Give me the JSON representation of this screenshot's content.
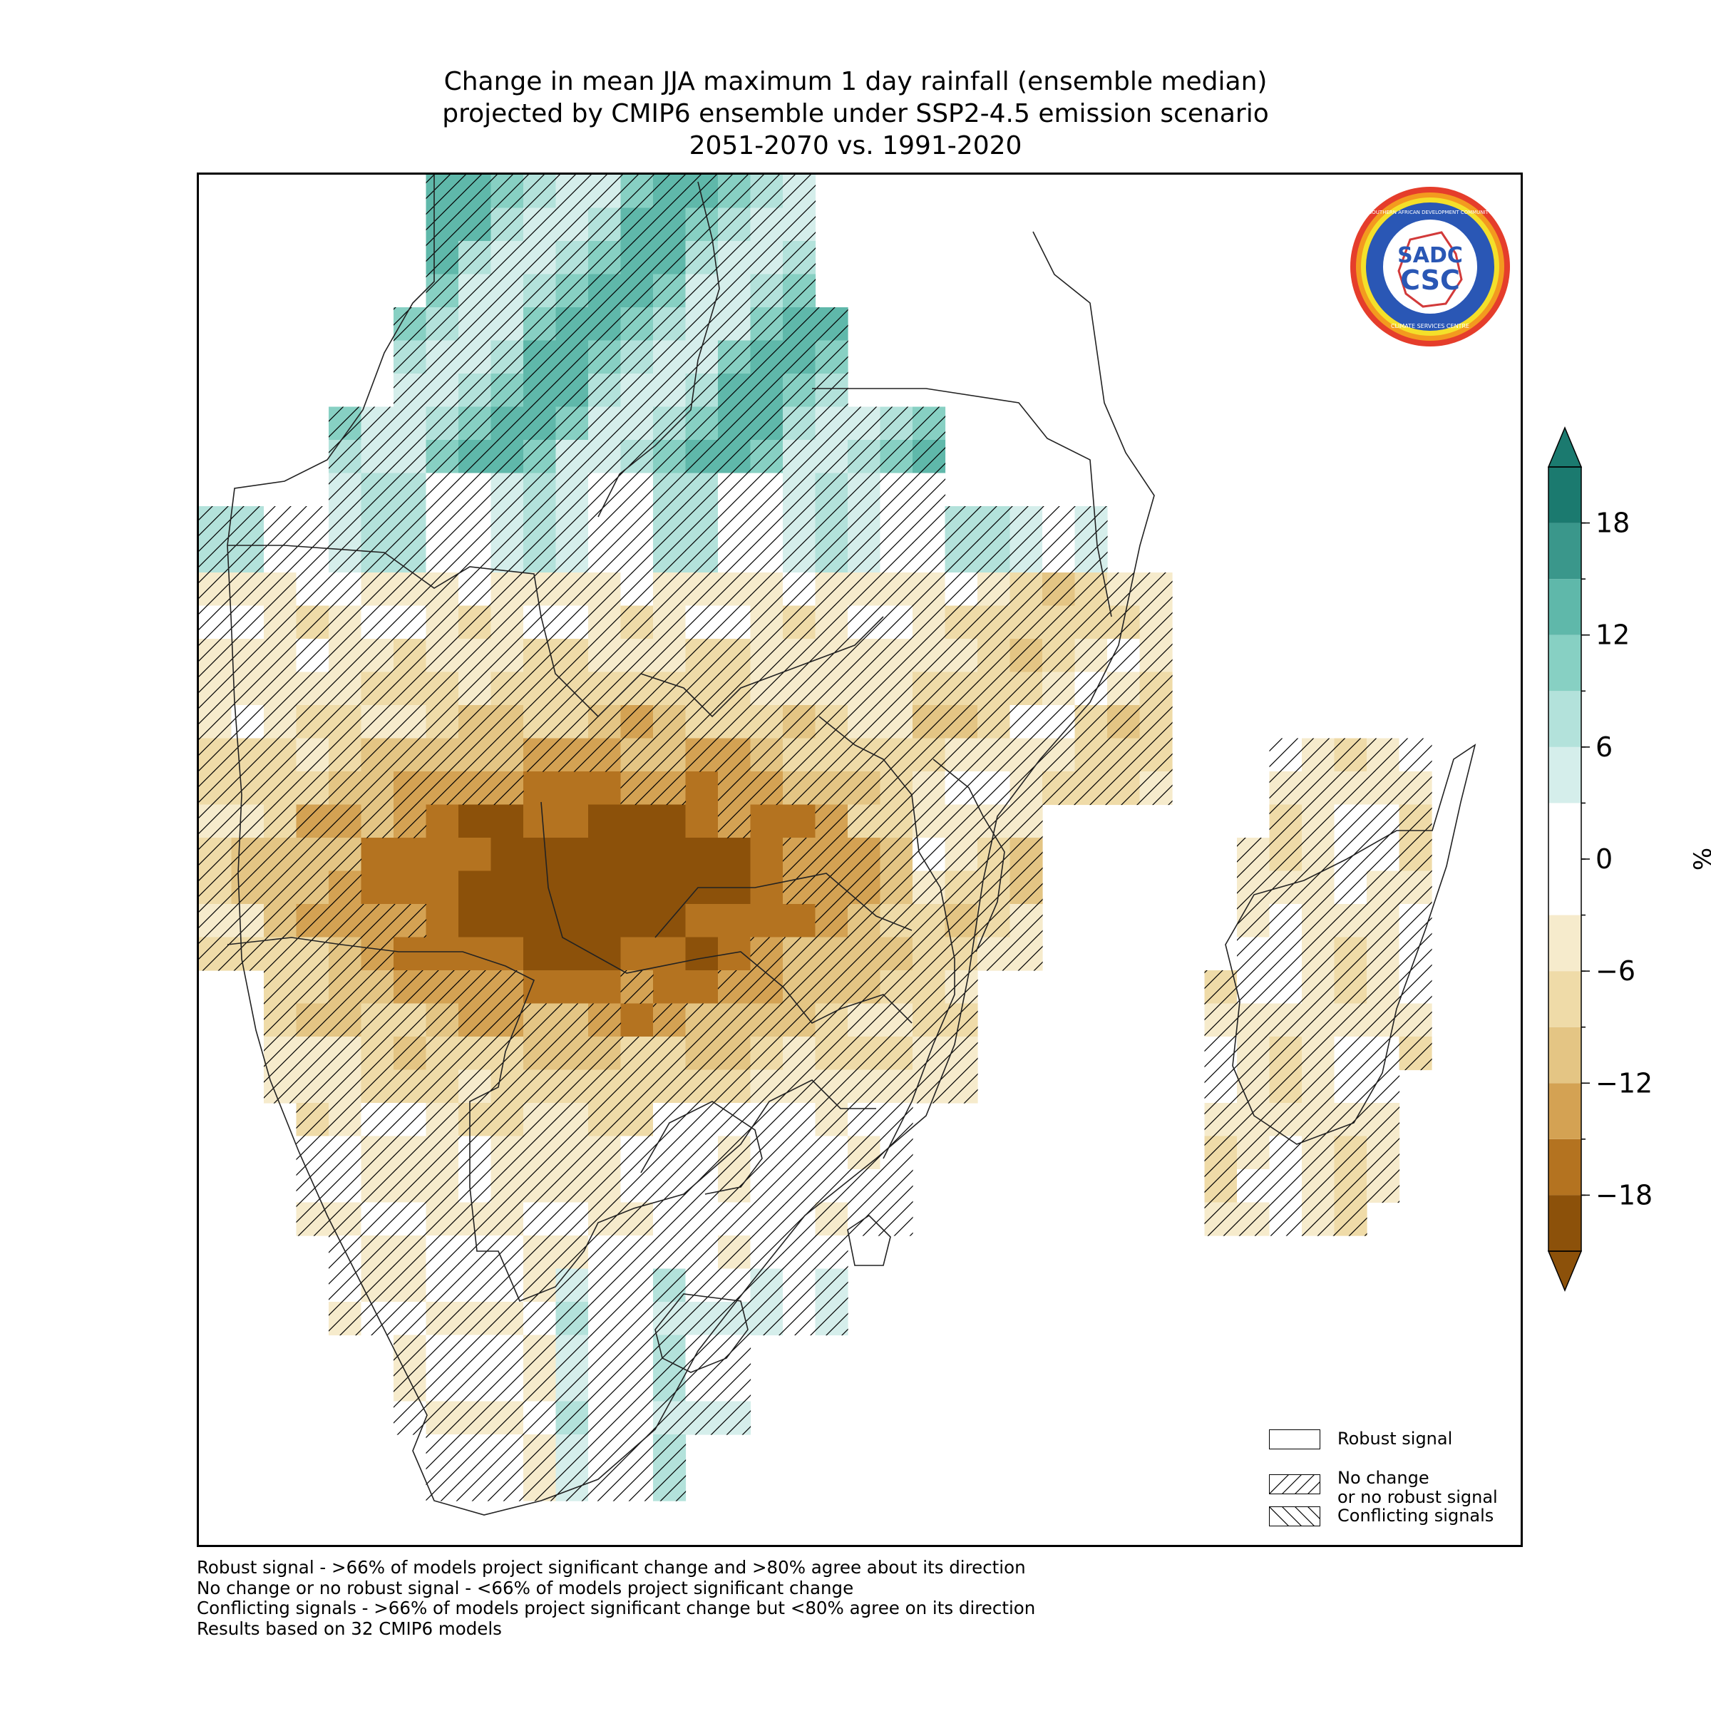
{
  "title": {
    "line1": "Change in mean JJA maximum 1 day rainfall (ensemble median)",
    "line2": "projected by CMIP6 ensemble under SSP2-4.5 emission scenario",
    "line3": "2051-2070 vs. 1991-2020"
  },
  "colorbar": {
    "unit": "%",
    "ticks": [
      "18",
      "12",
      "6",
      "0",
      "−6",
      "−12",
      "−18"
    ],
    "tick_values": [
      18,
      12,
      6,
      0,
      -6,
      -12,
      -18
    ],
    "range": [
      -21,
      21
    ],
    "extend": "both",
    "bins": [
      {
        "from": -21,
        "to": -18,
        "color": "#8c510a"
      },
      {
        "from": -18,
        "to": -15,
        "color": "#b47320"
      },
      {
        "from": -15,
        "to": -12,
        "color": "#d4a253"
      },
      {
        "from": -12,
        "to": -9,
        "color": "#e4c584"
      },
      {
        "from": -9,
        "to": -6,
        "color": "#efdba8"
      },
      {
        "from": -6,
        "to": -3,
        "color": "#f6ebcc"
      },
      {
        "from": -3,
        "to": 3,
        "color": "#ffffff"
      },
      {
        "from": 3,
        "to": 6,
        "color": "#d5eeeb"
      },
      {
        "from": 6,
        "to": 9,
        "color": "#b3e2db"
      },
      {
        "from": 9,
        "to": 12,
        "color": "#87d0c3"
      },
      {
        "from": 12,
        "to": 15,
        "color": "#5fb8aa"
      },
      {
        "from": 15,
        "to": 18,
        "color": "#3a978b"
      },
      {
        "from": 18,
        "to": 21,
        "color": "#1b7a6f"
      }
    ]
  },
  "legend": {
    "robust": "Robust signal",
    "no_change_line1": "No change",
    "no_change_line2": "or no robust signal",
    "conflicting": "Conflicting signals"
  },
  "footnotes": {
    "line1": "Robust signal - >66% of models project significant change and >80% agree about its direction",
    "line2": "No change or no robust signal - <66% of models project significant change",
    "line3": "Conflicting signals - >66% of models project significant change but <80% agree on its direction",
    "line4": "Results based on 32 CMIP6 models"
  },
  "logo": {
    "text_top": "SOUTHERN AFRICAN DEVELOPMENT COMMUNITY",
    "text_mid1": "SADC",
    "text_mid2": "CSC",
    "text_bottom": "CLIMATE SERVICES CENTRE"
  },
  "map_data": {
    "variable": "change in mean JJA maximum 1 day rainfall (%)",
    "region": "Southern Africa (SADC)",
    "regions_summary": [
      {
        "area": "northern DR Congo",
        "change": "+6 to +18",
        "color": "#87d0c3"
      },
      {
        "area": "central Angola / Zambia / northern Zimbabwe belt",
        "change": "-18 to -21",
        "color": "#8c510a"
      },
      {
        "area": "Tanzania / Mozambique / Madagascar",
        "change": "-3 to -12",
        "color": "#efdba8"
      },
      {
        "area": "eastern South Africa coast",
        "change": "+3 to +9",
        "color": "#d5eeeb"
      }
    ]
  }
}
